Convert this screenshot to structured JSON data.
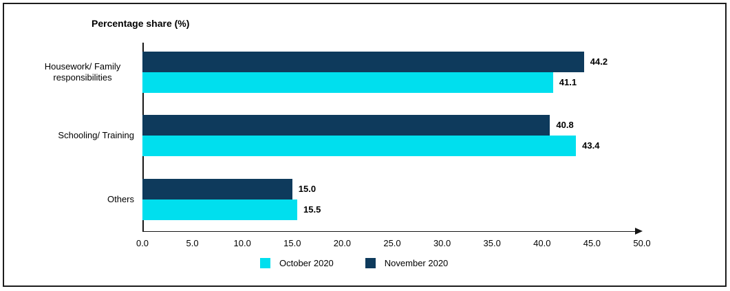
{
  "chart_data": {
    "type": "bar",
    "orientation": "horizontal",
    "title": "Percentage share (%)",
    "categories": [
      "Housework/ Family responsibilities",
      "Schooling/ Training",
      "Others"
    ],
    "series": [
      {
        "name": "October 2020",
        "color": "#00dfee",
        "values": [
          41.1,
          43.4,
          15.5
        ]
      },
      {
        "name": "November 2020",
        "color": "#0e3a5c",
        "values": [
          44.2,
          40.8,
          15.0
        ]
      }
    ],
    "bar_order_top_to_bottom": [
      "November 2020",
      "October 2020"
    ],
    "value_labels": [
      "44.2",
      "41.1",
      "40.8",
      "43.4",
      "15.0",
      "15.5"
    ],
    "xlim": [
      0.0,
      50.0
    ],
    "xtick_labels": [
      "0.0",
      "5.0",
      "10.0",
      "15.0",
      "20.0",
      "25.0",
      "30.0",
      "35.0",
      "40.0",
      "45.0",
      "50.0"
    ],
    "grid": "off",
    "legend_position": "bottom",
    "axis_color": "#161616",
    "frame_color": "#1c1c1c"
  }
}
